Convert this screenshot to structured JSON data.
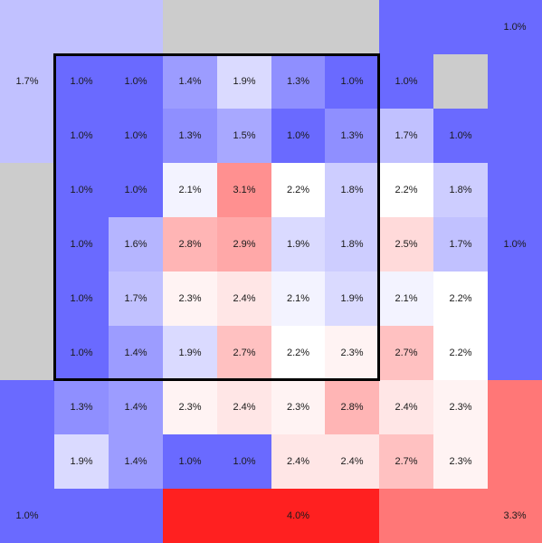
{
  "chart_data": {
    "type": "heatmap",
    "title": "",
    "xlabel": "",
    "ylabel": "",
    "grid": "10x10",
    "colors": {
      "low": "#6a6aff",
      "mid": "#ffffff",
      "high": "#ff2020",
      "missing": "#cccccc",
      "box": "#000000"
    },
    "scale": {
      "low": 1.0,
      "mid": 2.2,
      "high": 4.0
    },
    "blocks": [
      {
        "row": 0,
        "col": 0,
        "rows": 3,
        "cols": 1,
        "value": 1.7,
        "label": "1.7%"
      },
      {
        "row": 0,
        "col": 1,
        "rows": 1,
        "cols": 2,
        "value": 1.7
      },
      {
        "row": 0,
        "col": 3,
        "rows": 1,
        "cols": 4,
        "value": null
      },
      {
        "row": 0,
        "col": 7,
        "rows": 1,
        "cols": 3,
        "value": 1.0
      },
      {
        "row": 0,
        "col": 9,
        "rows": 1,
        "cols": 1,
        "value": 1.0,
        "label": "1.0%"
      },
      {
        "row": 1,
        "col": 8,
        "rows": 1,
        "cols": 1,
        "value": null
      },
      {
        "row": 1,
        "col": 9,
        "rows": 6,
        "cols": 1,
        "value": 1.0
      },
      {
        "row": 4,
        "col": 9,
        "rows": 1,
        "cols": 1,
        "value": 1.0,
        "label": "1.0%"
      },
      {
        "row": 3,
        "col": 0,
        "rows": 4,
        "cols": 1,
        "value": null
      },
      {
        "row": 7,
        "col": 0,
        "rows": 3,
        "cols": 1,
        "value": 1.0
      },
      {
        "row": 9,
        "col": 0,
        "rows": 1,
        "cols": 1,
        "value": 1.0,
        "label": "1.0%"
      },
      {
        "row": 9,
        "col": 1,
        "rows": 1,
        "cols": 2,
        "value": 1.0
      },
      {
        "row": 9,
        "col": 3,
        "rows": 1,
        "cols": 4,
        "value": 4.0
      },
      {
        "row": 9,
        "col": 5,
        "rows": 1,
        "cols": 1,
        "value": 4.0,
        "label": "4.0%"
      },
      {
        "row": 9,
        "col": 7,
        "rows": 1,
        "cols": 2,
        "value": 3.3
      },
      {
        "row": 7,
        "col": 9,
        "rows": 3,
        "cols": 1,
        "value": 3.3
      },
      {
        "row": 9,
        "col": 9,
        "rows": 1,
        "cols": 1,
        "value": 3.3,
        "label": "3.3%"
      }
    ],
    "inner": [
      [
        "1.0%",
        "1.0%",
        "1.4%",
        "1.9%",
        "1.3%",
        "1.0%",
        "1.0%",
        ""
      ],
      [
        "1.0%",
        "1.0%",
        "1.3%",
        "1.5%",
        "1.0%",
        "1.3%",
        "1.7%",
        "1.0%"
      ],
      [
        "1.0%",
        "1.0%",
        "2.1%",
        "3.1%",
        "2.2%",
        "1.8%",
        "2.2%",
        "1.8%"
      ],
      [
        "1.0%",
        "1.6%",
        "2.8%",
        "2.9%",
        "1.9%",
        "1.8%",
        "2.5%",
        "1.7%"
      ],
      [
        "1.0%",
        "1.7%",
        "2.3%",
        "2.4%",
        "2.1%",
        "1.9%",
        "2.1%",
        "2.2%"
      ],
      [
        "1.0%",
        "1.4%",
        "1.9%",
        "2.7%",
        "2.2%",
        "2.3%",
        "2.7%",
        "2.2%"
      ],
      [
        "1.3%",
        "1.4%",
        "2.3%",
        "2.4%",
        "2.3%",
        "2.8%",
        "2.4%",
        "2.3%"
      ],
      [
        "1.9%",
        "1.4%",
        "1.0%",
        "1.0%",
        "2.4%",
        "2.4%",
        "2.7%",
        "2.3%"
      ]
    ],
    "highlight": {
      "row_start": 2,
      "row_end": 7,
      "col_start": 2,
      "col_end": 7
    }
  }
}
